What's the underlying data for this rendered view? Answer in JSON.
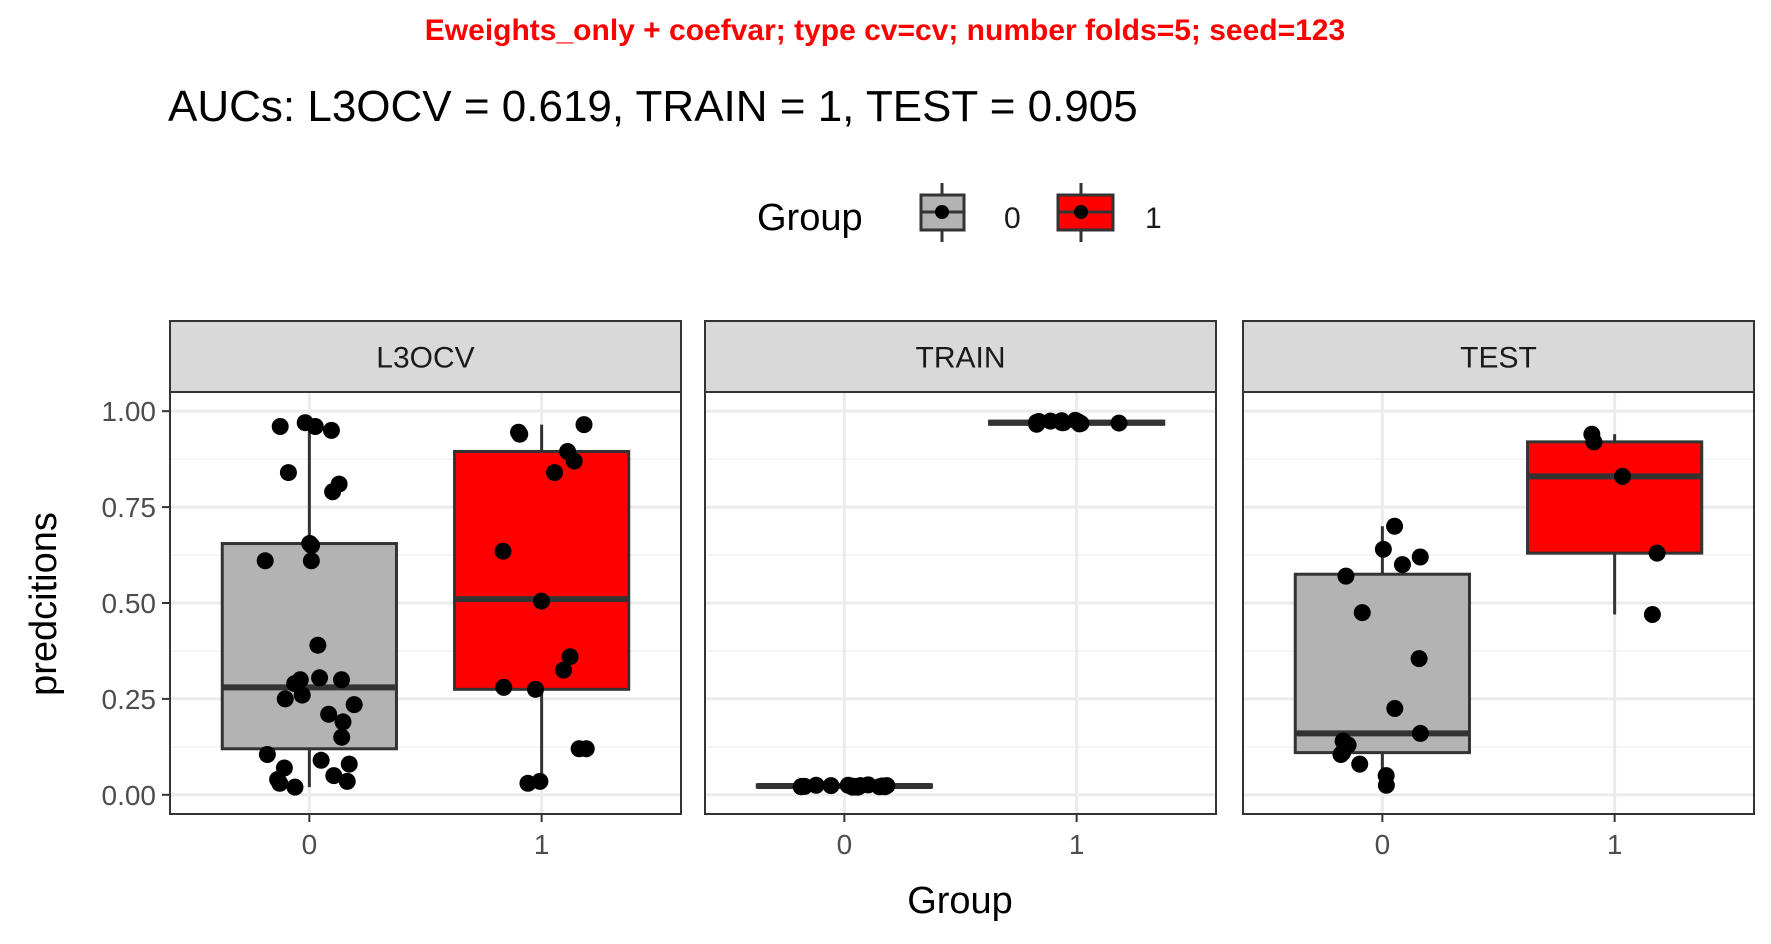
{
  "title": "Eweights_only + coefvar; type cv=cv; number folds=5; seed=123",
  "subtitle": "AUCs: L3OCV = 0.619, TRAIN = 1, TEST = 0.905",
  "legend": {
    "title": "Group",
    "labels": [
      "0",
      "1"
    ],
    "colors": [
      "#b3b3b3",
      "#ff0000"
    ],
    "position": "top"
  },
  "colors": {
    "group0": "#b3b3b3",
    "group1": "#ff0000",
    "strip": "#d9d9d9",
    "grid_major": "#ebebeb",
    "grid_minor": "#f3f3f3",
    "outline": "#333333",
    "points": "#000000"
  },
  "chart_data": {
    "type": "box",
    "xlabel": "Group",
    "ylabel": "predcitions",
    "categories": [
      "0",
      "1"
    ],
    "ylim": [
      -0.05,
      1.05
    ],
    "yticks": [
      "0.00",
      "0.25",
      "0.50",
      "0.75",
      "1.00"
    ],
    "grid": true,
    "panels": [
      {
        "name": "L3OCV",
        "boxes": [
          {
            "group": "0",
            "q1": 0.12,
            "median": 0.28,
            "q3": 0.655,
            "lower": 0.02,
            "upper": 0.97
          },
          {
            "group": "1",
            "q1": 0.275,
            "median": 0.51,
            "q3": 0.895,
            "lower": 0.03,
            "upper": 0.965
          }
        ],
        "points": [
          {
            "group": "0",
            "values": [
              0.96,
              0.95,
              0.96,
              0.97,
              0.84,
              0.81,
              0.79,
              0.655,
              0.65,
              0.61,
              0.61,
              0.39,
              0.305,
              0.3,
              0.3,
              0.29,
              0.26,
              0.25,
              0.235,
              0.21,
              0.19,
              0.15,
              0.105,
              0.09,
              0.08,
              0.07,
              0.05,
              0.04,
              0.035,
              0.03,
              0.02
            ]
          },
          {
            "group": "1",
            "values": [
              0.965,
              0.945,
              0.94,
              0.895,
              0.87,
              0.84,
              0.635,
              0.505,
              0.36,
              0.325,
              0.28,
              0.275,
              0.12,
              0.12,
              0.035,
              0.03
            ]
          }
        ]
      },
      {
        "name": "TRAIN",
        "boxes": [
          {
            "group": "0",
            "q1": 0.02,
            "median": 0.023,
            "q3": 0.026,
            "lower": 0.018,
            "upper": 0.028
          },
          {
            "group": "1",
            "q1": 0.966,
            "median": 0.97,
            "q3": 0.974,
            "lower": 0.963,
            "upper": 0.978
          }
        ],
        "points": [
          {
            "group": "0",
            "values": [
              0.02,
              0.022,
              0.024,
              0.021,
              0.025,
              0.023,
              0.02,
              0.026,
              0.022,
              0.024,
              0.021,
              0.023,
              0.025,
              0.02,
              0.022,
              0.024,
              0.023,
              0.021
            ]
          },
          {
            "group": "1",
            "values": [
              0.968,
              0.972,
              0.97,
              0.975,
              0.966,
              0.973,
              0.969,
              0.971,
              0.974,
              0.967,
              0.976,
              0.97
            ]
          }
        ]
      },
      {
        "name": "TEST",
        "boxes": [
          {
            "group": "0",
            "q1": 0.11,
            "median": 0.16,
            "q3": 0.575,
            "lower": 0.025,
            "upper": 0.7
          },
          {
            "group": "1",
            "q1": 0.63,
            "median": 0.83,
            "q3": 0.92,
            "lower": 0.47,
            "upper": 0.94
          }
        ],
        "points": [
          {
            "group": "0",
            "values": [
              0.7,
              0.64,
              0.62,
              0.6,
              0.57,
              0.475,
              0.355,
              0.225,
              0.16,
              0.14,
              0.13,
              0.11,
              0.105,
              0.08,
              0.05,
              0.025
            ]
          },
          {
            "group": "1",
            "values": [
              0.94,
              0.92,
              0.83,
              0.63,
              0.47
            ]
          }
        ]
      }
    ]
  }
}
